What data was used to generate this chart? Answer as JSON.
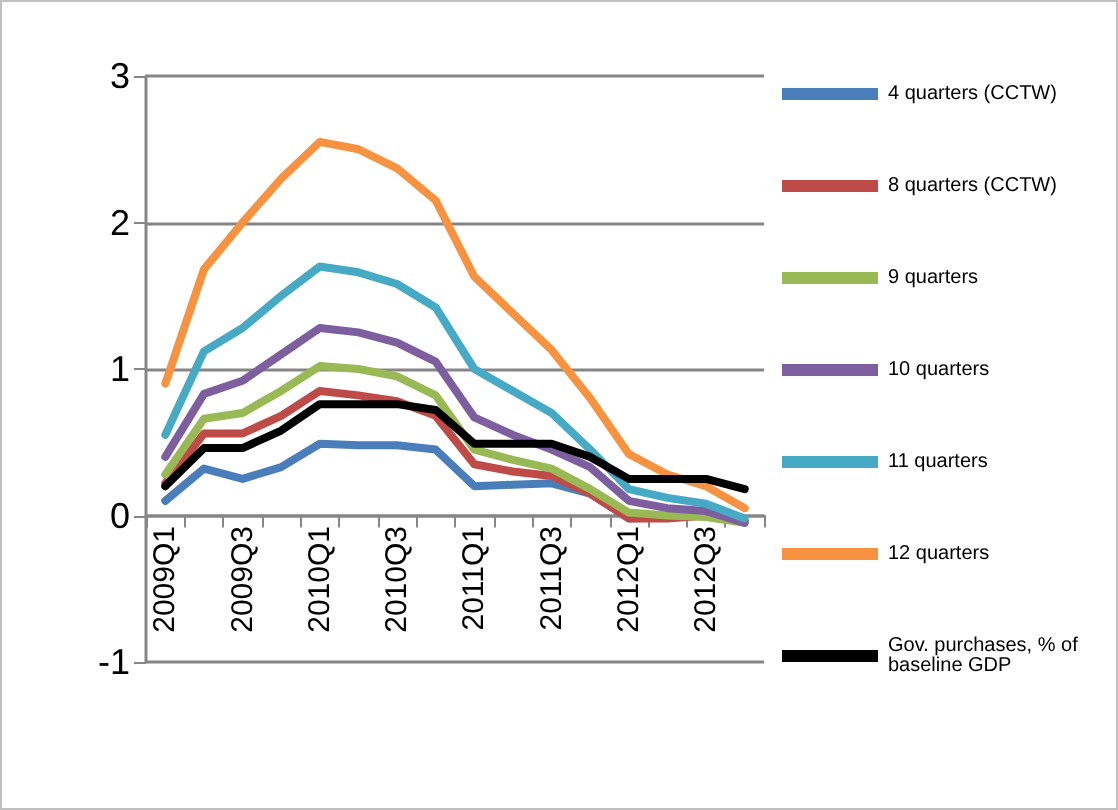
{
  "chart_data": {
    "type": "line",
    "categories": [
      "2009Q1",
      null,
      "2009Q3",
      null,
      "2010Q1",
      null,
      "2010Q3",
      null,
      "2011Q1",
      null,
      "2011Q3",
      null,
      "2012Q1",
      null,
      "2012Q3",
      null
    ],
    "ylim": [
      -1,
      3
    ],
    "yticks": [
      -1,
      0,
      1,
      2,
      3
    ],
    "grid": "y",
    "legend": "right",
    "marker": "none",
    "line_style": "solid",
    "series": [
      {
        "name": "4 quarters (CCTW)",
        "color": "#4a7ebb",
        "values": [
          0.1,
          0.32,
          0.25,
          0.33,
          0.49,
          0.48,
          0.48,
          0.45,
          0.2,
          0.21,
          0.22,
          0.15,
          -0.02,
          -0.01,
          0.0,
          -0.04
        ]
      },
      {
        "name": "8 quarters (CCTW)",
        "color": "#be4b48",
        "values": [
          0.22,
          0.56,
          0.56,
          0.68,
          0.85,
          0.82,
          0.78,
          0.68,
          0.35,
          0.3,
          0.27,
          0.15,
          -0.02,
          -0.02,
          0.0,
          -0.04
        ]
      },
      {
        "name": "9 quarters",
        "color": "#98b954",
        "values": [
          0.28,
          0.66,
          0.7,
          0.85,
          1.02,
          1.0,
          0.95,
          0.82,
          0.45,
          0.38,
          0.32,
          0.18,
          0.02,
          0.0,
          -0.01,
          -0.05
        ]
      },
      {
        "name": "10 quarters",
        "color": "#7d5fa0",
        "values": [
          0.4,
          0.83,
          0.92,
          1.1,
          1.28,
          1.25,
          1.18,
          1.05,
          0.67,
          0.55,
          0.45,
          0.33,
          0.1,
          0.05,
          0.03,
          -0.05
        ]
      },
      {
        "name": "11 quarters",
        "color": "#46aac5",
        "values": [
          0.55,
          1.12,
          1.28,
          1.5,
          1.7,
          1.66,
          1.58,
          1.42,
          1.0,
          0.85,
          0.7,
          0.45,
          0.18,
          0.12,
          0.08,
          -0.02
        ]
      },
      {
        "name": "12 quarters",
        "color": "#f69240",
        "values": [
          0.9,
          1.68,
          2.0,
          2.3,
          2.55,
          2.5,
          2.37,
          2.15,
          1.63,
          1.38,
          1.13,
          0.8,
          0.42,
          0.28,
          0.2,
          0.05
        ]
      },
      {
        "name": "Gov. purchases, % of baseline GDP",
        "color": "#000000",
        "values": [
          0.2,
          0.46,
          0.46,
          0.58,
          0.76,
          0.76,
          0.76,
          0.72,
          0.49,
          0.49,
          0.49,
          0.4,
          0.25,
          0.25,
          0.25,
          0.18
        ]
      }
    ]
  }
}
